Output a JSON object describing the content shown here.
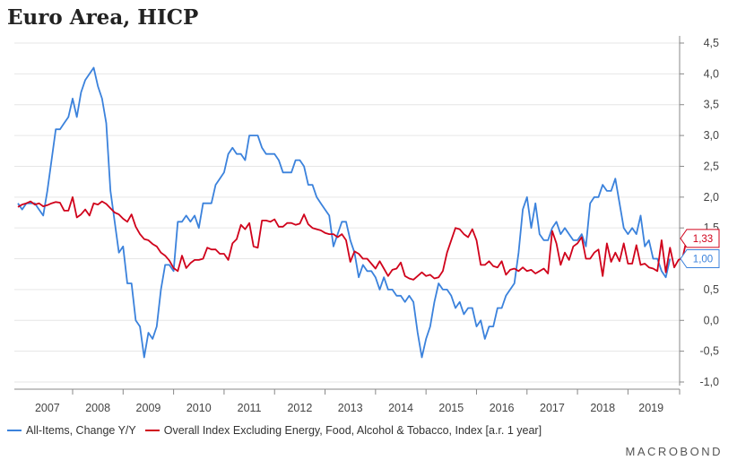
{
  "title": "Euro Area, HICP",
  "brand": "MACROBOND",
  "colors": {
    "blue": "#3b82dc",
    "red": "#d0021b",
    "grid": "#e6e6e6",
    "axis": "#888888"
  },
  "chart_data": {
    "type": "line",
    "title": "Euro Area, HICP",
    "xlabel": "",
    "ylabel": "",
    "ylim": [
      -1.0,
      4.5
    ],
    "y_ticks": [
      "4,5",
      "4,0",
      "3,5",
      "3,0",
      "2,5",
      "2,0",
      "1,5",
      "1,0",
      "0,5",
      "0,0",
      "-0,5",
      "-1,0"
    ],
    "y_tick_values": [
      4.5,
      4.0,
      3.5,
      3.0,
      2.5,
      2.0,
      1.5,
      1.0,
      0.5,
      0.0,
      -0.5,
      -1.0
    ],
    "x_ticks": [
      "2007",
      "2008",
      "2009",
      "2010",
      "2011",
      "2012",
      "2013",
      "2014",
      "2015",
      "2016",
      "2017",
      "2018",
      "2019"
    ],
    "x_start": "2006-12",
    "grid": true,
    "legend_position": "bottom-left",
    "series": [
      {
        "name": "All-Items, Change Y/Y",
        "color": "#3b82dc",
        "end_label": "1,00",
        "values": [
          1.9,
          1.8,
          1.9,
          1.9,
          1.9,
          1.8,
          1.7,
          2.1,
          2.6,
          3.1,
          3.1,
          3.2,
          3.3,
          3.6,
          3.3,
          3.7,
          3.9,
          4.0,
          4.1,
          3.8,
          3.6,
          3.2,
          2.1,
          1.6,
          1.1,
          1.2,
          0.6,
          0.6,
          0.0,
          -0.1,
          -0.6,
          -0.2,
          -0.3,
          -0.1,
          0.5,
          0.9,
          0.9,
          0.8,
          1.6,
          1.6,
          1.7,
          1.6,
          1.7,
          1.5,
          1.9,
          1.9,
          1.9,
          2.2,
          2.3,
          2.4,
          2.7,
          2.8,
          2.7,
          2.7,
          2.6,
          3.0,
          3.0,
          3.0,
          2.8,
          2.7,
          2.7,
          2.7,
          2.6,
          2.4,
          2.4,
          2.4,
          2.6,
          2.6,
          2.5,
          2.2,
          2.2,
          2.0,
          1.9,
          1.8,
          1.7,
          1.2,
          1.4,
          1.6,
          1.6,
          1.3,
          1.1,
          0.7,
          0.9,
          0.8,
          0.8,
          0.7,
          0.5,
          0.7,
          0.5,
          0.5,
          0.4,
          0.4,
          0.3,
          0.4,
          0.3,
          -0.2,
          -0.6,
          -0.3,
          -0.1,
          0.3,
          0.6,
          0.5,
          0.5,
          0.4,
          0.2,
          0.3,
          0.1,
          0.2,
          0.2,
          -0.1,
          0.0,
          -0.3,
          -0.1,
          -0.1,
          0.2,
          0.2,
          0.4,
          0.5,
          0.6,
          1.1,
          1.8,
          2.0,
          1.5,
          1.9,
          1.4,
          1.3,
          1.3,
          1.5,
          1.6,
          1.4,
          1.5,
          1.4,
          1.3,
          1.3,
          1.4,
          1.2,
          1.9,
          2.0,
          2.0,
          2.2,
          2.1,
          2.1,
          2.3,
          1.9,
          1.5,
          1.4,
          1.5,
          1.4,
          1.7,
          1.2,
          1.3,
          1.0,
          1.0,
          0.8,
          0.7,
          1.0
        ],
        "value_labels": []
      },
      {
        "name": "Overall Index Excluding Energy, Food, Alcohol & Tobacco, Index [a.r. 1 year]",
        "color": "#d0021b",
        "end_label": "1,33",
        "values": [
          1.84,
          1.88,
          1.9,
          1.93,
          1.88,
          1.9,
          1.85,
          1.87,
          1.9,
          1.92,
          1.91,
          1.78,
          1.78,
          2.0,
          1.67,
          1.72,
          1.8,
          1.7,
          1.9,
          1.88,
          1.93,
          1.89,
          1.82,
          1.75,
          1.72,
          1.65,
          1.6,
          1.72,
          1.52,
          1.4,
          1.32,
          1.3,
          1.24,
          1.2,
          1.1,
          1.05,
          0.97,
          0.85,
          0.8,
          1.05,
          0.85,
          0.93,
          0.98,
          0.98,
          1.0,
          1.18,
          1.15,
          1.15,
          1.08,
          1.08,
          0.98,
          1.25,
          1.32,
          1.55,
          1.48,
          1.58,
          1.2,
          1.18,
          1.62,
          1.62,
          1.6,
          1.64,
          1.52,
          1.52,
          1.58,
          1.58,
          1.55,
          1.57,
          1.72,
          1.56,
          1.5,
          1.48,
          1.46,
          1.42,
          1.4,
          1.4,
          1.35,
          1.4,
          1.3,
          0.95,
          1.12,
          1.08,
          1.0,
          1.0,
          0.92,
          0.84,
          0.96,
          0.84,
          0.72,
          0.82,
          0.84,
          0.94,
          0.72,
          0.68,
          0.66,
          0.72,
          0.78,
          0.72,
          0.74,
          0.68,
          0.7,
          0.8,
          1.1,
          1.3,
          1.5,
          1.48,
          1.4,
          1.35,
          1.48,
          1.3,
          0.9,
          0.9,
          0.96,
          0.88,
          0.86,
          0.96,
          0.74,
          0.82,
          0.84,
          0.8,
          0.86,
          0.8,
          0.82,
          0.76,
          0.8,
          0.84,
          0.76,
          1.45,
          1.25,
          0.9,
          1.1,
          0.98,
          1.2,
          1.25,
          1.35,
          1.0,
          1.0,
          1.1,
          1.15,
          0.72,
          1.25,
          0.95,
          1.1,
          0.96,
          1.25,
          0.92,
          0.92,
          1.22,
          0.9,
          0.92,
          0.86,
          0.84,
          0.8,
          1.3,
          0.78,
          1.18,
          0.86,
          0.98,
          1.02,
          1.33
        ],
        "value_labels": []
      }
    ]
  }
}
